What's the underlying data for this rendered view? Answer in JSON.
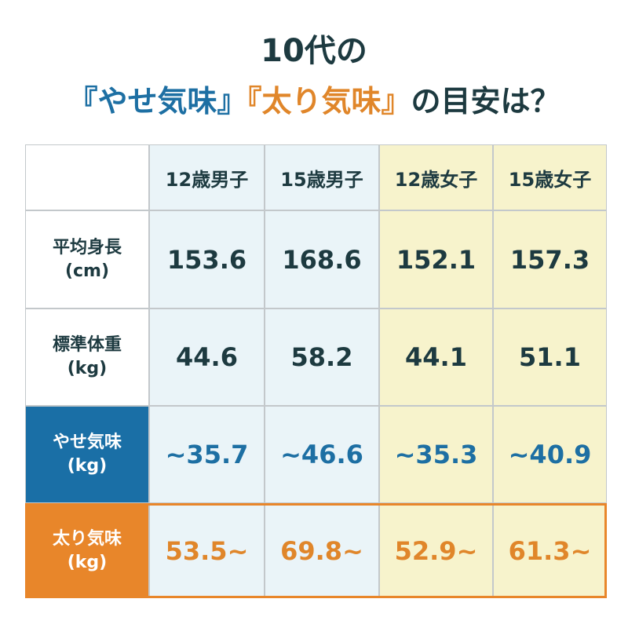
{
  "header": {
    "line1": "10代の",
    "line2": [
      "『やせ気味』",
      "『太り気味』",
      "の目安は？"
    ]
  },
  "table": {
    "columns": [
      "12歳男子",
      "15歳男子",
      "12歳女子",
      "15歳女子"
    ],
    "rows": [
      {
        "label": [
          "平均身長",
          "(cm)"
        ],
        "cells": [
          "153.6",
          "168.6",
          "152.1",
          "157.3"
        ]
      },
      {
        "label": [
          "標準体重",
          "(kg)"
        ],
        "cells": [
          "44.6",
          "58.2",
          "44.1",
          "51.1"
        ]
      },
      {
        "label": [
          "やせ気味",
          "(kg)"
        ],
        "cells": [
          "~35.7",
          "~46.6",
          "~35.3",
          "~40.9"
        ]
      },
      {
        "label": [
          "太り気味",
          "(kg)"
        ],
        "cells": [
          "53.5~",
          "69.8~",
          "52.9~",
          "61.3~"
        ]
      }
    ]
  }
}
